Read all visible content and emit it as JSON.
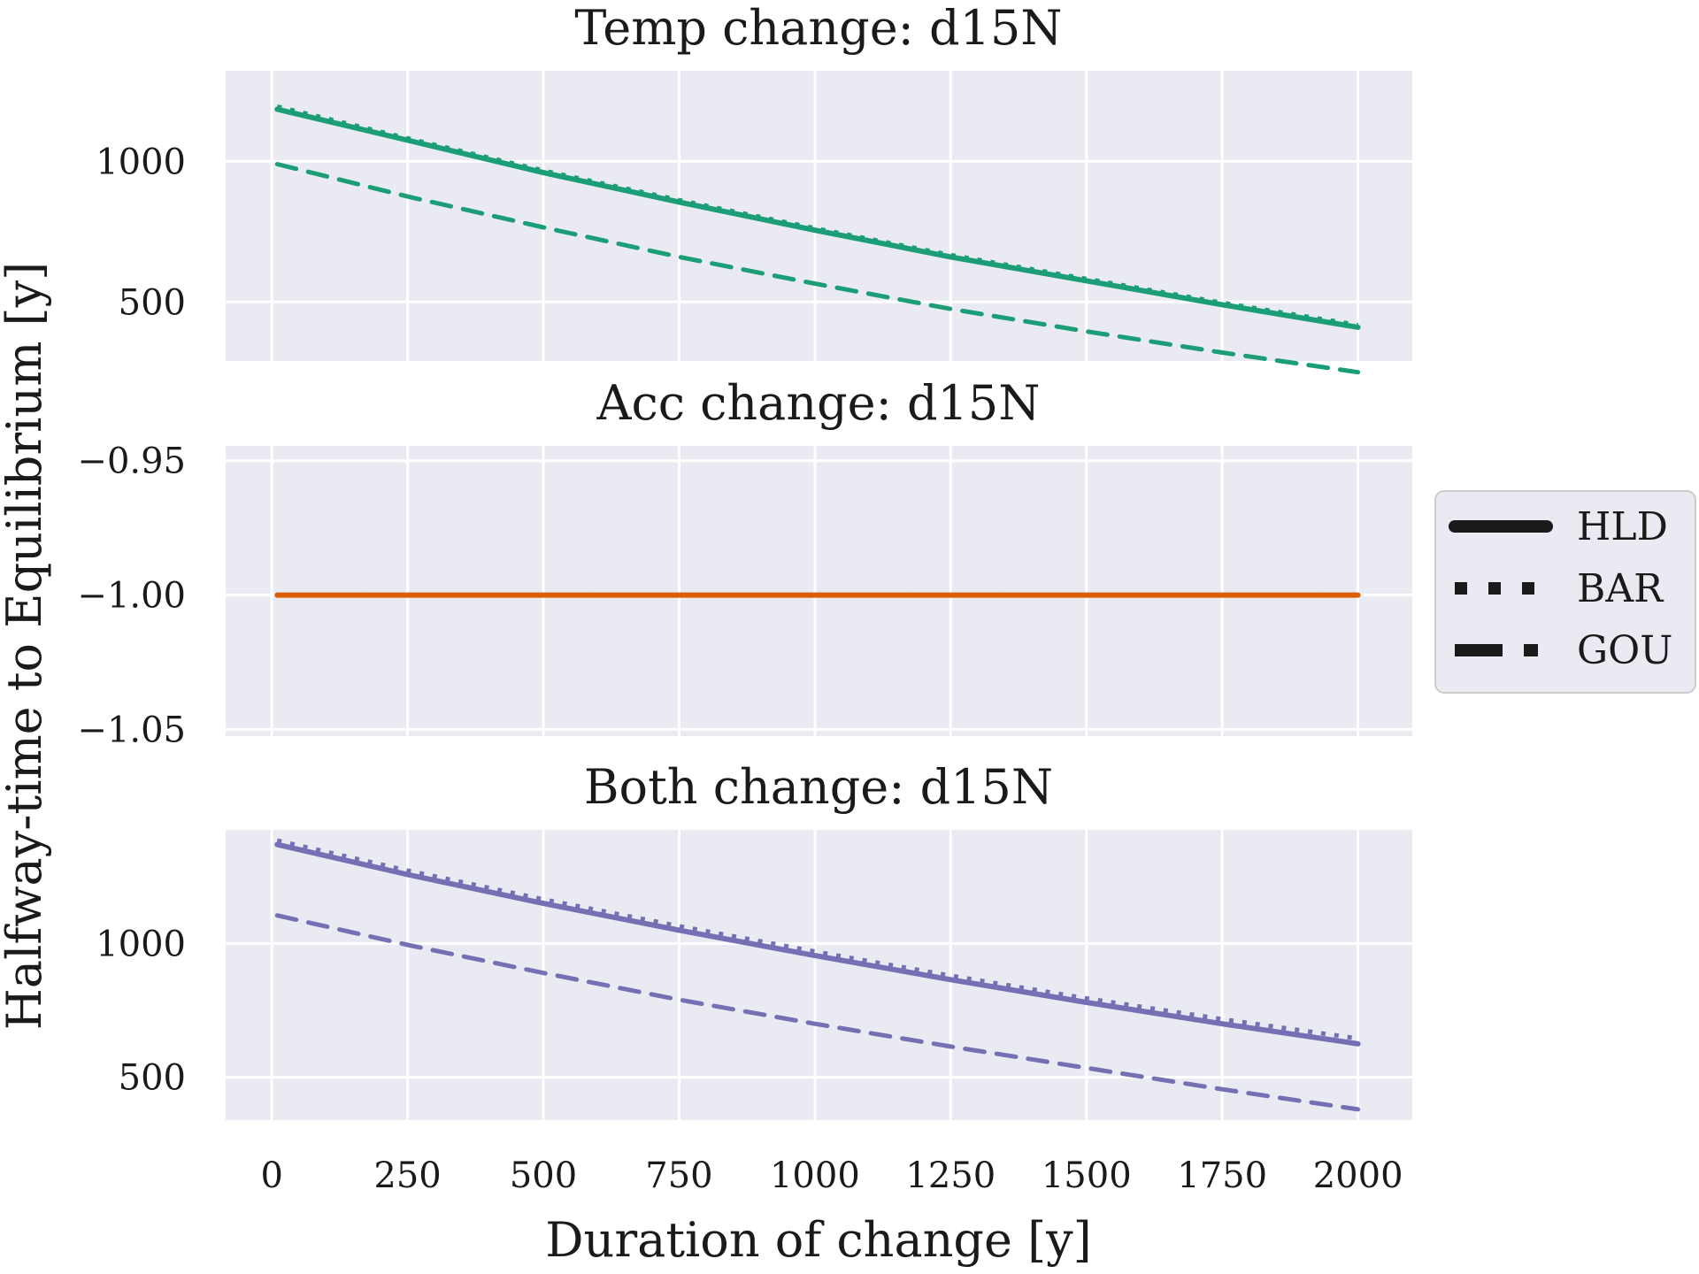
{
  "colors": {
    "temp": "#1b9e77",
    "acc": "#d95f02",
    "both": "#7570b3",
    "panel_bg": "#eaeaf2",
    "grid": "#ffffff",
    "legend_line": "#1a1a1a"
  },
  "chart_data": {
    "type": "line",
    "xlabel": "Duration of change [y]",
    "ylabel": "Halfway-time to Equilibrium [y]",
    "x_ticks": [
      "0",
      "250",
      "500",
      "750",
      "1000",
      "1250",
      "1500",
      "1750",
      "2000"
    ],
    "xlim": [
      -85,
      2100
    ],
    "grid": true,
    "legend": {
      "placement": "right",
      "entries": [
        {
          "name": "HLD",
          "style": "solid"
        },
        {
          "name": "BAR",
          "style": "dotted"
        },
        {
          "name": "GOU",
          "style": "dashed"
        }
      ]
    },
    "panels": [
      {
        "title": "Temp change: d15N",
        "color_key": "temp",
        "ylim": [
          290,
          1322
        ],
        "y_ticks": [
          {
            "value": 500,
            "label": "500"
          },
          {
            "value": 1000,
            "label": "1000"
          }
        ],
        "x": [
          10,
          250,
          500,
          750,
          1000,
          1250,
          1500,
          1750,
          2000
        ],
        "series": [
          {
            "name": "HLD",
            "style": "solid",
            "values": [
              1185,
              1075,
              960,
              855,
              755,
              660,
              575,
              490,
              410
            ]
          },
          {
            "name": "BAR",
            "style": "dotted",
            "values": [
              1195,
              1082,
              967,
              862,
              762,
              667,
              582,
              497,
              418
            ]
          },
          {
            "name": "GOU",
            "style": "dashed",
            "values": [
              990,
              875,
              765,
              660,
              565,
              475,
              395,
              320,
              250
            ]
          }
        ]
      },
      {
        "title": "Acc change: d15N",
        "color_key": "acc",
        "ylim": [
          -1.0525,
          -0.9445
        ],
        "y_ticks": [
          {
            "value": -0.95,
            "label": "−0.95"
          },
          {
            "value": -1.0,
            "label": "−1.00"
          },
          {
            "value": -1.05,
            "label": "−1.05"
          }
        ],
        "x": [
          10,
          2000
        ],
        "series": [
          {
            "name": "HLD",
            "style": "solid",
            "values": [
              -1.0,
              -1.0
            ]
          },
          {
            "name": "BAR",
            "style": "dotted",
            "values": [
              -1.0,
              -1.0
            ]
          },
          {
            "name": "GOU",
            "style": "dashed",
            "values": [
              -1.0,
              -1.0
            ]
          }
        ]
      },
      {
        "title": "Both change: d15N",
        "color_key": "both",
        "ylim": [
          340,
          1425
        ],
        "y_ticks": [
          {
            "value": 500,
            "label": "500"
          },
          {
            "value": 1000,
            "label": "1000"
          }
        ],
        "x": [
          10,
          250,
          500,
          750,
          1000,
          1250,
          1500,
          1750,
          2000
        ],
        "series": [
          {
            "name": "HLD",
            "style": "solid",
            "values": [
              1370,
              1258,
              1150,
              1050,
              955,
              865,
              780,
              700,
              625
            ]
          },
          {
            "name": "BAR",
            "style": "dotted",
            "values": [
              1385,
              1273,
              1165,
              1065,
              970,
              880,
              795,
              717,
              645
            ]
          },
          {
            "name": "GOU",
            "style": "dashed",
            "values": [
              1105,
              995,
              890,
              790,
              700,
              615,
              535,
              455,
              380
            ]
          }
        ]
      }
    ]
  }
}
